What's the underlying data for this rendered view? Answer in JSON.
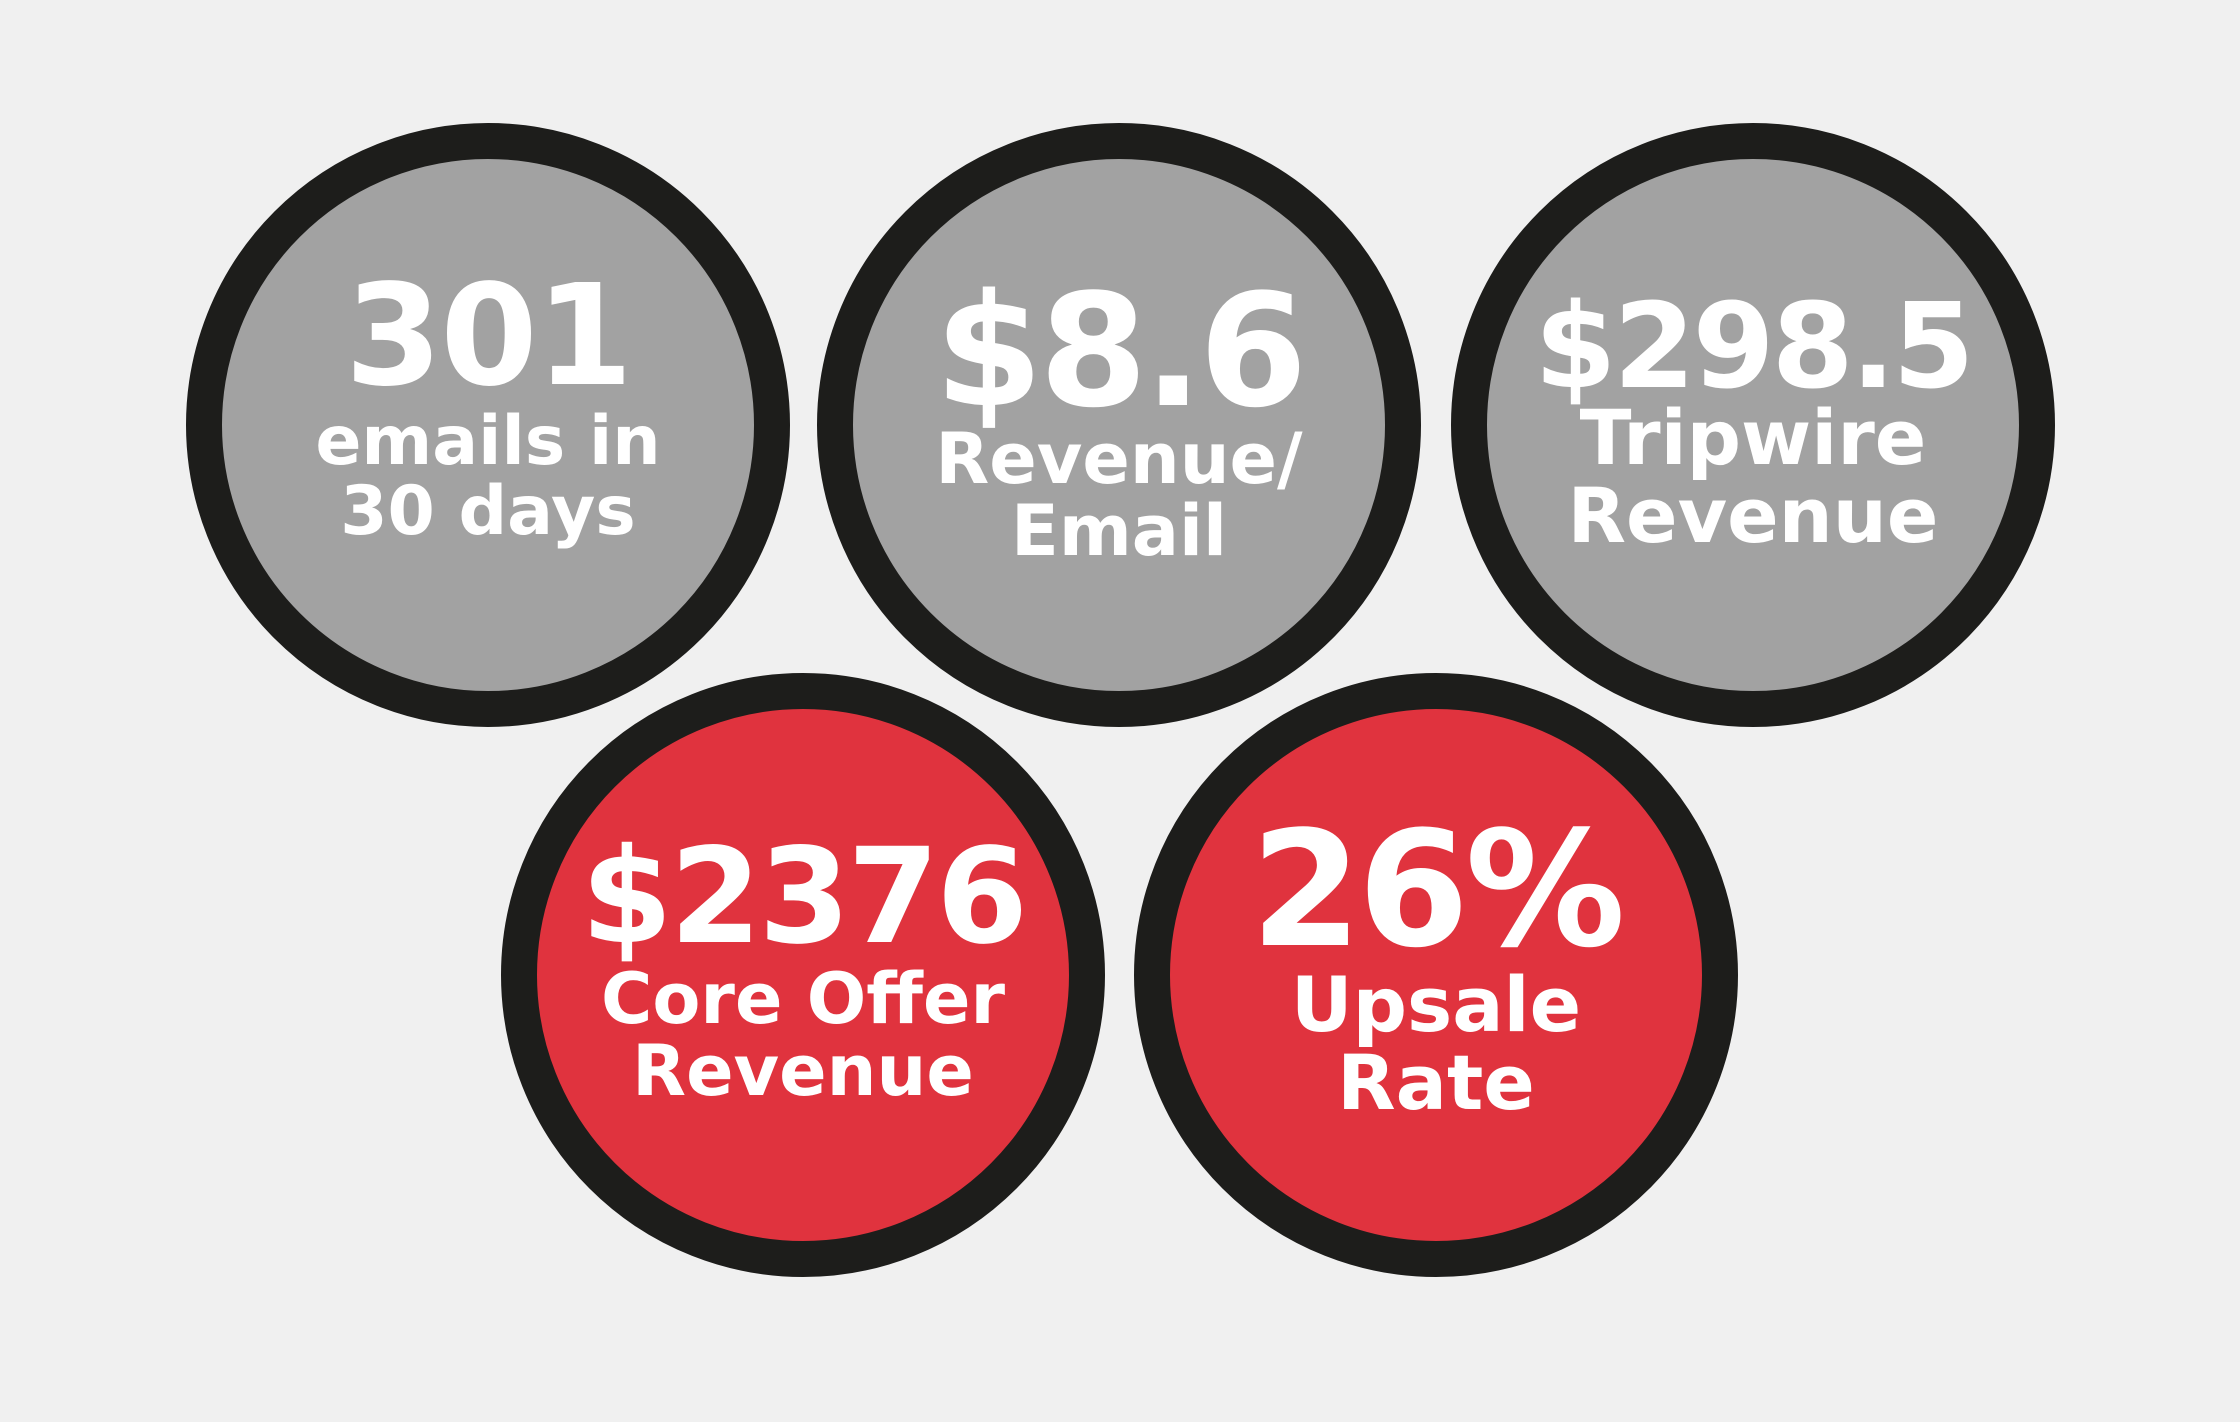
{
  "stats": [
    {
      "value": "301",
      "label": "emails in\n30 days",
      "color": "#a2a2a2"
    },
    {
      "value": "$8.6",
      "label": "Revenue/\nEmail",
      "color": "#a2a2a2"
    },
    {
      "value": "$298.5",
      "label": "Tripwire\nRevenue",
      "color": "#a2a2a2"
    },
    {
      "value": "$2376",
      "label": "Core Offer\nRevenue",
      "color": "#e0333e"
    },
    {
      "value": "26%",
      "label": "Upsale\nRate",
      "color": "#e0333e"
    }
  ],
  "ring_color": "#1d1d1b",
  "background_color": "#f0f0f0"
}
